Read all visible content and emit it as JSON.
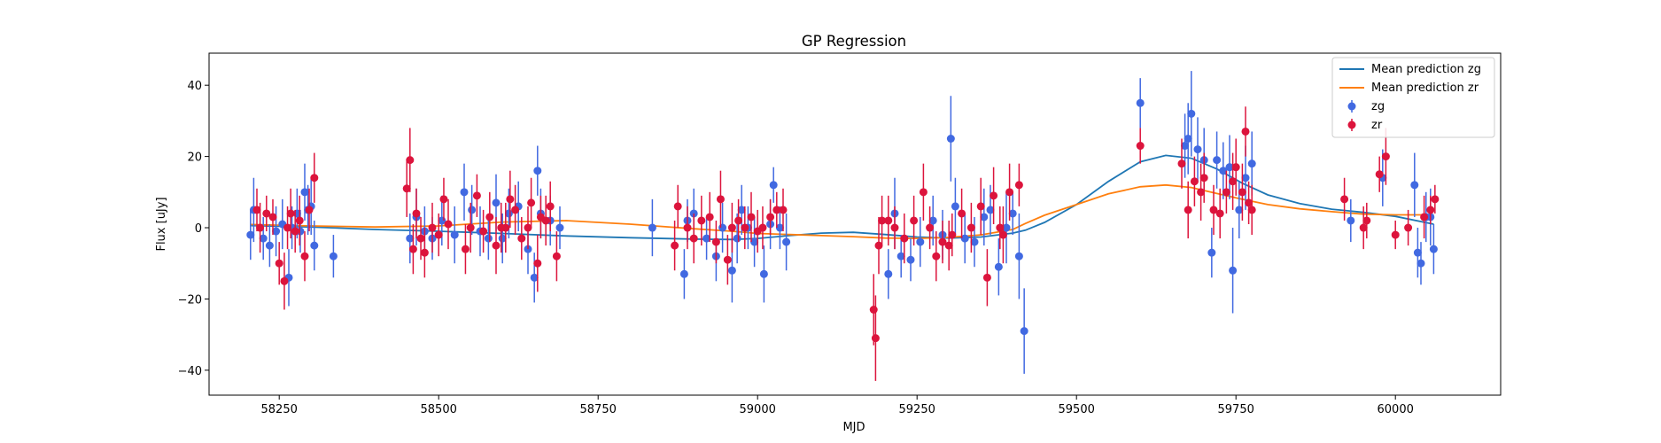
{
  "chart_data": {
    "type": "scatter",
    "title": "GP Regression",
    "xlabel": "MJD",
    "ylabel": "Flux [uJy]",
    "xlim": [
      58140,
      60165
    ],
    "ylim": [
      -47,
      49
    ],
    "xticks": [
      58250,
      58500,
      58750,
      59000,
      59250,
      59500,
      59750,
      60000
    ],
    "yticks": [
      -40,
      -20,
      0,
      20,
      40
    ],
    "grid": false,
    "legend_position": "top-right",
    "series": [
      {
        "name": "Mean prediction zg",
        "kind": "line",
        "color": "#1f77b4",
        "x": [
          58205,
          58300,
          58400,
          58500,
          58600,
          58700,
          58800,
          58900,
          58960,
          59000,
          59050,
          59100,
          59150,
          59200,
          59250,
          59300,
          59350,
          59400,
          59420,
          59450,
          59500,
          59550,
          59600,
          59640,
          59680,
          59720,
          59760,
          59800,
          59850,
          59900,
          59950,
          60000,
          60060
        ],
        "y": [
          0.6,
          0.2,
          -0.5,
          -1.0,
          -1.6,
          -2.3,
          -2.8,
          -3.2,
          -3.3,
          -3.0,
          -2.2,
          -1.5,
          -1.3,
          -1.9,
          -2.6,
          -2.9,
          -2.6,
          -1.5,
          -0.7,
          1.5,
          6.5,
          13,
          18.5,
          20.3,
          19.5,
          16.5,
          12.5,
          9.2,
          6.8,
          5.2,
          4.3,
          3.2,
          1.0
        ]
      },
      {
        "name": "Mean prediction zr",
        "kind": "line",
        "color": "#ff7f0e",
        "x": [
          58205,
          58300,
          58400,
          58500,
          58600,
          58700,
          58800,
          58900,
          58960,
          59000,
          59050,
          59100,
          59150,
          59200,
          59250,
          59300,
          59350,
          59400,
          59420,
          59450,
          59500,
          59550,
          59600,
          59640,
          59680,
          59720,
          59760,
          59800,
          59850,
          59900,
          59950,
          60000,
          60060
        ],
        "y": [
          0.9,
          0.5,
          0.2,
          0.5,
          1.6,
          2.0,
          1.0,
          -0.3,
          -1.0,
          -1.6,
          -1.9,
          -2.2,
          -2.5,
          -2.9,
          -3.0,
          -2.7,
          -2.0,
          -0.5,
          1.2,
          3.5,
          6.5,
          9.5,
          11.5,
          12.0,
          11.3,
          9.6,
          8.0,
          6.5,
          5.3,
          4.5,
          3.8,
          3.6,
          3.6
        ]
      },
      {
        "name": "zg",
        "kind": "errorbar",
        "color": "#4169e1",
        "x": [
          58205,
          58210,
          58225,
          58235,
          58245,
          58255,
          58265,
          58270,
          58278,
          58283,
          58290,
          58295,
          58300,
          58305,
          58335,
          58455,
          58465,
          58478,
          58490,
          58505,
          58525,
          58540,
          58552,
          58565,
          58578,
          58590,
          58600,
          58610,
          58625,
          58640,
          58650,
          58655,
          58660,
          58675,
          58690,
          58835,
          58885,
          58890,
          58900,
          58920,
          58935,
          58945,
          58960,
          58968,
          58975,
          58985,
          58995,
          59010,
          59020,
          59025,
          59035,
          59045,
          59205,
          59215,
          59225,
          59240,
          59255,
          59275,
          59290,
          59303,
          59310,
          59325,
          59340,
          59355,
          59365,
          59378,
          59390,
          59400,
          59410,
          59418,
          59600,
          59670,
          59675,
          59680,
          59690,
          59700,
          59712,
          59720,
          59730,
          59740,
          59745,
          59755,
          59765,
          59775,
          59930,
          59980,
          60030,
          60035,
          60040,
          60048,
          60055,
          60060
        ],
        "y": [
          -2,
          5,
          -3,
          -5,
          -1,
          1,
          -14,
          0,
          4,
          -1,
          10,
          5,
          6,
          -5,
          -8,
          -3,
          3,
          -1,
          -3,
          2,
          -2,
          10,
          5,
          -1,
          -3,
          7,
          -3,
          4,
          6,
          -6,
          -14,
          16,
          4,
          2,
          0,
          0,
          -13,
          2,
          4,
          -3,
          -8,
          0,
          -12,
          -3,
          5,
          0,
          -4,
          -13,
          1,
          12,
          0,
          -4,
          -13,
          4,
          -8,
          -9,
          -4,
          2,
          -2,
          25,
          6,
          -3,
          -4,
          3,
          5,
          -11,
          0,
          4,
          -8,
          -29,
          35,
          23,
          25,
          32,
          22,
          19,
          -7,
          19,
          16,
          17,
          -12,
          5,
          14,
          18,
          2,
          14,
          12,
          -7,
          -10,
          3,
          3,
          -6
        ],
        "err": [
          7,
          9,
          6,
          6,
          7,
          7,
          8,
          6,
          7,
          6,
          8,
          7,
          8,
          7,
          6,
          7,
          8,
          7,
          6,
          7,
          8,
          8,
          7,
          7,
          6,
          8,
          7,
          7,
          7,
          7,
          7,
          7,
          7,
          7,
          6,
          8,
          7,
          6,
          7,
          6,
          7,
          7,
          9,
          7,
          7,
          6,
          7,
          8,
          7,
          5,
          6,
          8,
          7,
          10,
          6,
          6,
          7,
          7,
          7,
          12,
          8,
          7,
          7,
          8,
          7,
          8,
          10,
          6,
          12,
          12,
          7,
          9,
          10,
          12,
          9,
          9,
          7,
          8,
          8,
          9,
          12,
          8,
          9,
          9,
          6,
          8,
          9,
          7,
          6,
          7,
          8,
          7
        ]
      },
      {
        "name": "zr",
        "kind": "errorbar",
        "color": "#dc143c",
        "x": [
          58215,
          58220,
          58230,
          58240,
          58250,
          58258,
          58263,
          58268,
          58275,
          58282,
          58290,
          58297,
          58305,
          58450,
          58455,
          58460,
          58465,
          58472,
          58478,
          58490,
          58500,
          58508,
          58515,
          58542,
          58550,
          58560,
          58570,
          58580,
          58590,
          58598,
          58605,
          58612,
          58620,
          58630,
          58640,
          58645,
          58655,
          58660,
          58668,
          58675,
          58685,
          58870,
          58875,
          58890,
          58900,
          58912,
          58925,
          58935,
          58942,
          58953,
          58960,
          58970,
          58980,
          58990,
          59000,
          59008,
          59020,
          59030,
          59040,
          59182,
          59185,
          59190,
          59195,
          59205,
          59215,
          59230,
          59245,
          59260,
          59270,
          59280,
          59290,
          59300,
          59305,
          59320,
          59335,
          59350,
          59360,
          59370,
          59380,
          59385,
          59395,
          59410,
          59600,
          59665,
          59675,
          59685,
          59695,
          59700,
          59715,
          59725,
          59735,
          59745,
          59750,
          59760,
          59765,
          59770,
          59775,
          59920,
          59950,
          59955,
          59975,
          59985,
          60000,
          60020,
          60045,
          60055,
          60062
        ],
        "y": [
          5,
          0,
          4,
          3,
          -10,
          -15,
          0,
          4,
          -1,
          2,
          -8,
          5,
          14,
          11,
          19,
          -6,
          4,
          -3,
          -7,
          0,
          -2,
          8,
          1,
          -6,
          0,
          9,
          -1,
          3,
          -5,
          0,
          0,
          8,
          5,
          -3,
          0,
          7,
          -10,
          3,
          2,
          6,
          -8,
          -5,
          6,
          0,
          -3,
          2,
          3,
          -4,
          8,
          -9,
          0,
          2,
          0,
          3,
          -1,
          0,
          3,
          5,
          5,
          -23,
          -31,
          -5,
          2,
          2,
          0,
          -3,
          2,
          10,
          0,
          -8,
          -4,
          -5,
          -2,
          4,
          0,
          6,
          -14,
          9,
          0,
          -2,
          10,
          12,
          23,
          18,
          5,
          13,
          10,
          14,
          5,
          4,
          10,
          13,
          17,
          10,
          27,
          7,
          5,
          8,
          0,
          2,
          15,
          20,
          -2,
          0,
          3,
          5,
          8
        ],
        "err": [
          6,
          7,
          5,
          5,
          6,
          8,
          6,
          7,
          6,
          7,
          7,
          6,
          7,
          8,
          9,
          7,
          7,
          6,
          7,
          7,
          6,
          6,
          7,
          7,
          7,
          6,
          6,
          7,
          8,
          7,
          7,
          8,
          7,
          6,
          6,
          7,
          8,
          6,
          7,
          7,
          7,
          7,
          6,
          6,
          7,
          7,
          7,
          6,
          8,
          7,
          7,
          6,
          6,
          7,
          6,
          6,
          5,
          5,
          6,
          10,
          12,
          8,
          7,
          7,
          6,
          7,
          7,
          8,
          6,
          7,
          6,
          7,
          6,
          7,
          7,
          8,
          8,
          8,
          6,
          8,
          8,
          6,
          5,
          7,
          8,
          7,
          8,
          7,
          7,
          7,
          6,
          8,
          8,
          8,
          7,
          6,
          7,
          6,
          6,
          5,
          5,
          8,
          4,
          5,
          6,
          4,
          4
        ]
      }
    ]
  }
}
